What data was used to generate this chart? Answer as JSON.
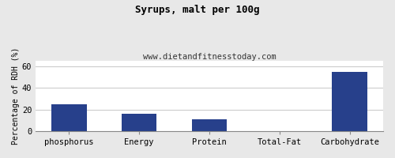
{
  "title": "Syrups, malt per 100g",
  "subtitle": "www.dietandfitnesstoday.com",
  "categories": [
    "phosphorus",
    "Energy",
    "Protein",
    "Total-Fat",
    "Carbohydrate"
  ],
  "values": [
    25,
    16,
    11,
    0.3,
    55
  ],
  "bar_color": "#27408B",
  "ylabel": "Percentage of RDH (%)",
  "ylim": [
    0,
    65
  ],
  "yticks": [
    0,
    20,
    40,
    60
  ],
  "background_color": "#e8e8e8",
  "plot_bg_color": "#ffffff",
  "title_fontsize": 9,
  "subtitle_fontsize": 7.5,
  "ylabel_fontsize": 7,
  "tick_fontsize": 7.5
}
